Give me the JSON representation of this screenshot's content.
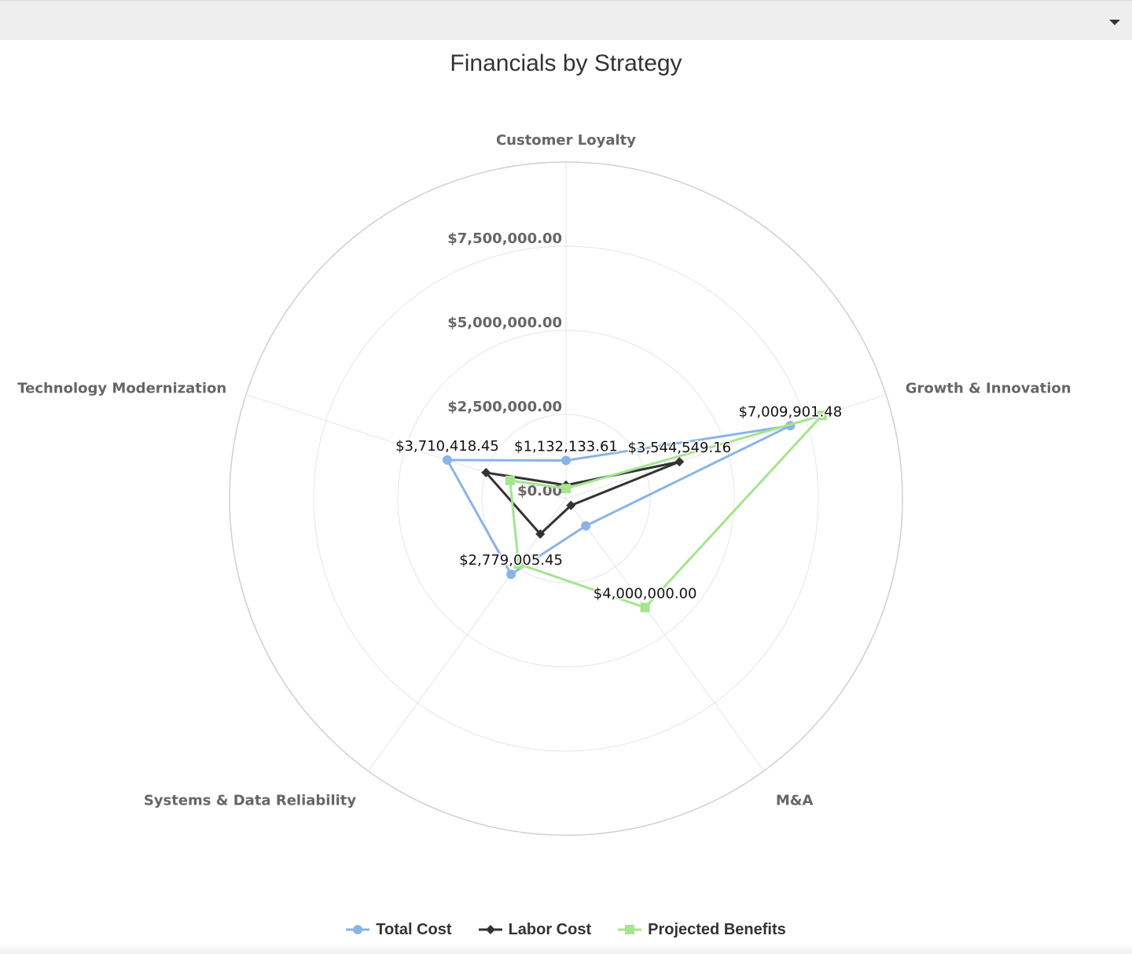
{
  "chart_data": {
    "type": "radar",
    "title": "Financials by Strategy",
    "categories": [
      "Customer Loyalty",
      "Growth & Innovation",
      "M&A",
      "Systems & Data Reliability",
      "Technology Modernization"
    ],
    "radial_ticks": [
      "$0.00",
      "$2,500,000.00",
      "$5,000,000.00",
      "$7,500,000.00"
    ],
    "radial_tick_values": [
      0,
      2500000,
      5000000,
      7500000
    ],
    "rmax": 10000000,
    "grid": true,
    "legend_position": "bottom",
    "series": [
      {
        "name": "Total Cost",
        "color": "#8ab4e8",
        "marker": "circle",
        "values": [
          1132133.61,
          7009901.48,
          1000000,
          2779005.45,
          3710418.45
        ]
      },
      {
        "name": "Labor Cost",
        "color": "#333333",
        "marker": "diamond",
        "values": [
          400000,
          3544549.16,
          250000,
          1300000,
          2500000
        ]
      },
      {
        "name": "Projected Benefits",
        "color": "#a4e58e",
        "marker": "square",
        "values": [
          300000,
          8000000,
          4000000,
          2400000,
          1750000
        ]
      }
    ],
    "data_labels": [
      {
        "series": 0,
        "point": 0,
        "text": "$1,132,133.61"
      },
      {
        "series": 0,
        "point": 1,
        "text": "$7,009,901.48"
      },
      {
        "series": 0,
        "point": 3,
        "text": "$2,779,005.45"
      },
      {
        "series": 0,
        "point": 4,
        "text": "$3,710,418.45"
      },
      {
        "series": 1,
        "point": 1,
        "text": "$3,544,549.16"
      },
      {
        "series": 2,
        "point": 2,
        "text": "$4,000,000.00"
      }
    ]
  }
}
